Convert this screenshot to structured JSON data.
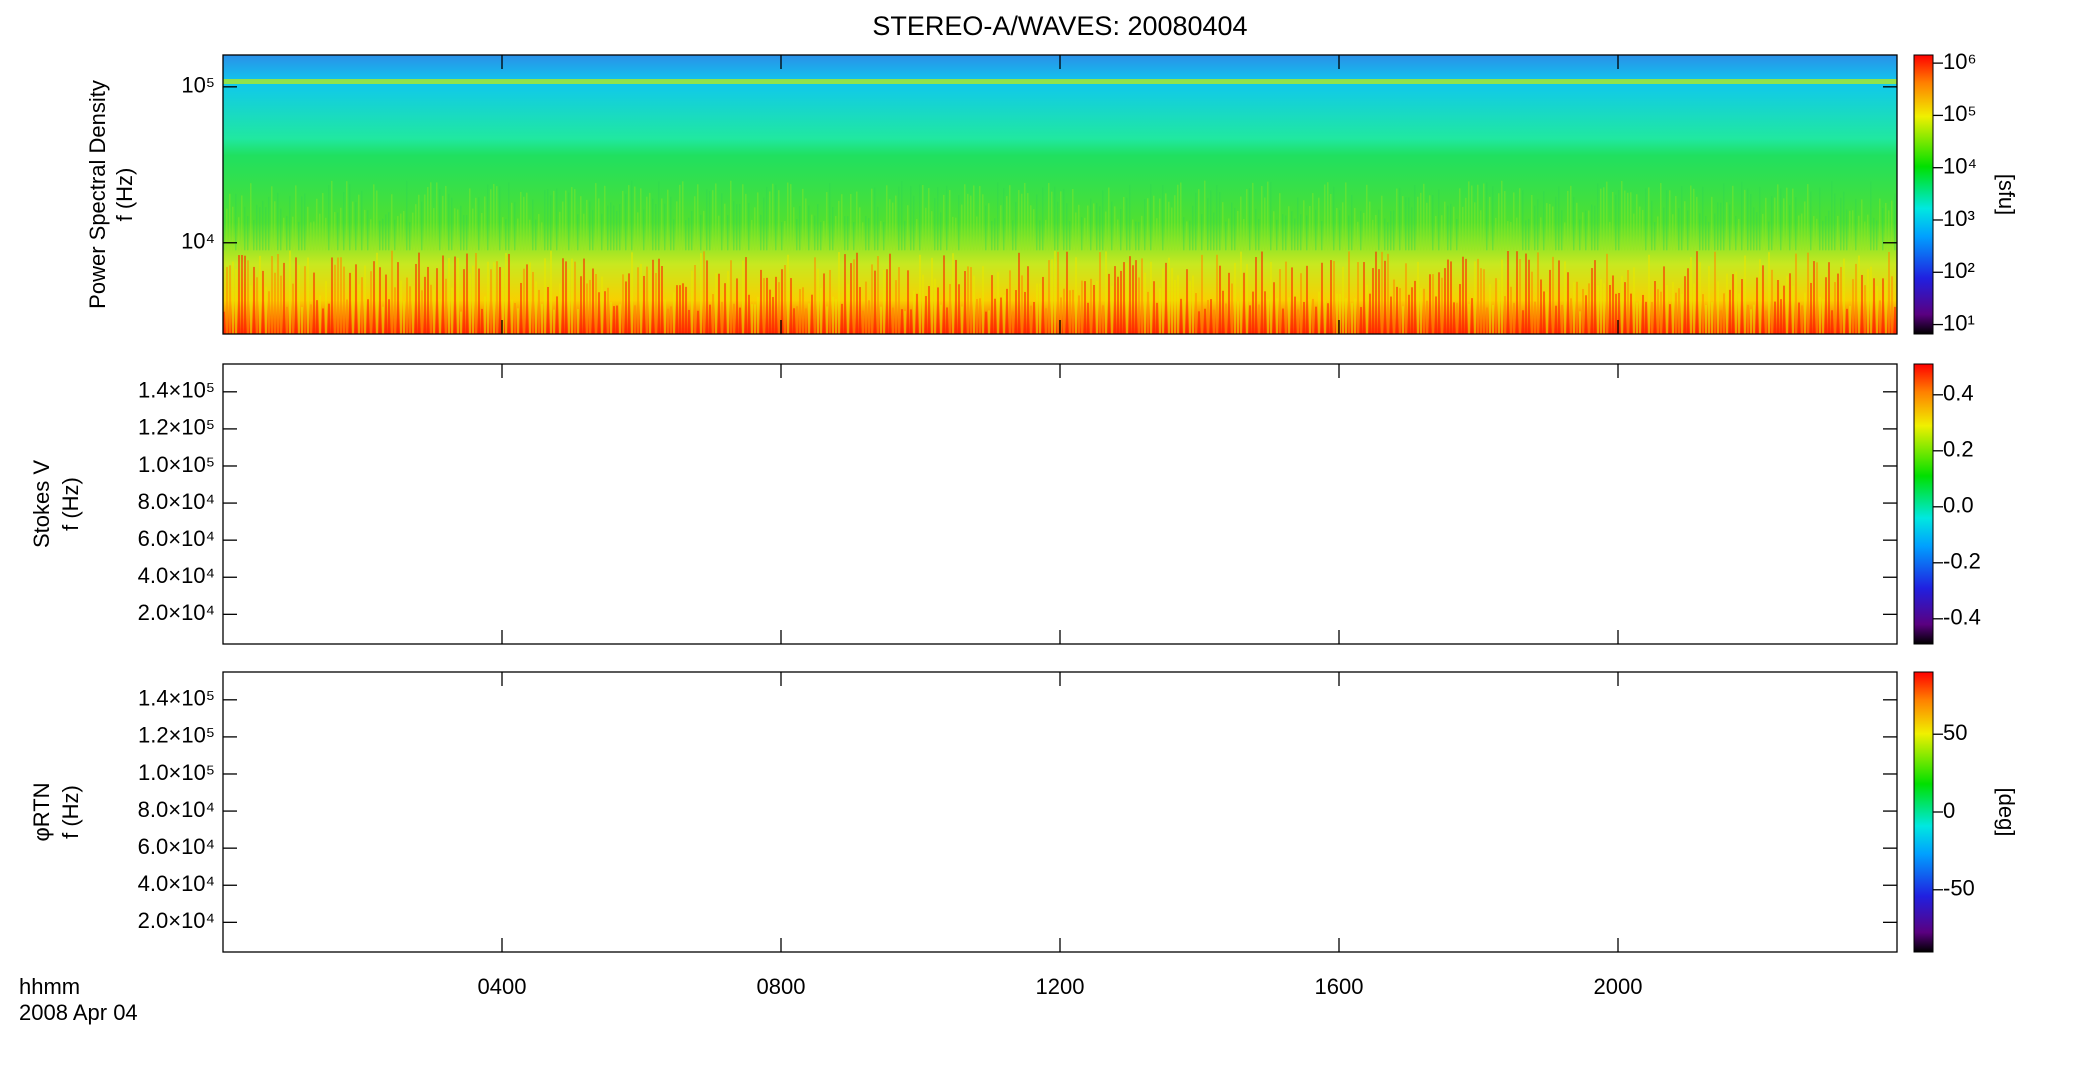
{
  "title": "STEREO-A/WAVES: 20080404",
  "x_axis": {
    "xlim": [
      0,
      24
    ],
    "xticks": [
      {
        "value": 4,
        "label": "0400"
      },
      {
        "value": 8,
        "label": "0800"
      },
      {
        "value": 12,
        "label": "1200"
      },
      {
        "value": 16,
        "label": "1600"
      },
      {
        "value": 20,
        "label": "2000"
      }
    ],
    "time_label": "hhmm",
    "date_label": "2008 Apr 04"
  },
  "chart_data": [
    {
      "type": "spectrogram",
      "has_data": true,
      "y_label": [
        "Power Spectral Density",
        "f (Hz)"
      ],
      "y_log": true,
      "ylim": [
        2600,
        160000
      ],
      "yticks": [
        {
          "value": 10000,
          "label": "10⁴"
        },
        {
          "value": 100000,
          "label": "10⁵"
        }
      ],
      "colorbar": {
        "log": true,
        "lim": [
          6.6,
          1430000
        ],
        "label": "[sfu]",
        "ticks": [
          {
            "value": 10,
            "label": "10¹"
          },
          {
            "value": 100,
            "label": "10²"
          },
          {
            "value": 1000,
            "label": "10³"
          },
          {
            "value": 10000,
            "label": "10⁴"
          },
          {
            "value": 100000,
            "label": "10⁵"
          },
          {
            "value": 1000000,
            "label": "10⁶"
          }
        ]
      }
    },
    {
      "type": "spectrogram",
      "has_data": false,
      "y_label": [
        "Stokes V",
        "f (Hz)"
      ],
      "y_log": false,
      "ylim": [
        4000,
        155000
      ],
      "yticks": [
        {
          "value": 20000,
          "label": "2.0×10⁴"
        },
        {
          "value": 40000,
          "label": "4.0×10⁴"
        },
        {
          "value": 60000,
          "label": "6.0×10⁴"
        },
        {
          "value": 80000,
          "label": "8.0×10⁴"
        },
        {
          "value": 100000,
          "label": "1.0×10⁵"
        },
        {
          "value": 120000,
          "label": "1.2×10⁵"
        },
        {
          "value": 140000,
          "label": "1.4×10⁵"
        }
      ],
      "colorbar": {
        "log": false,
        "lim": [
          -0.49,
          0.51
        ],
        "ticks": [
          -0.4,
          -0.2,
          {
            "value": 0,
            "label": "0.0"
          },
          0.2,
          0.4
        ]
      }
    },
    {
      "type": "spectrogram",
      "has_data": false,
      "y_label": [
        "φRTN",
        "f (Hz)"
      ],
      "y_log": false,
      "ylim": [
        4000,
        155000
      ],
      "yticks": [
        {
          "value": 20000,
          "label": "2.0×10⁴"
        },
        {
          "value": 40000,
          "label": "4.0×10⁴"
        },
        {
          "value": 60000,
          "label": "6.0×10⁴"
        },
        {
          "value": 80000,
          "label": "8.0×10⁴"
        },
        {
          "value": 100000,
          "label": "1.0×10⁵"
        },
        {
          "value": 120000,
          "label": "1.2×10⁵"
        },
        {
          "value": 140000,
          "label": "1.4×10⁵"
        }
      ],
      "colorbar": {
        "log": false,
        "lim": [
          -90,
          90
        ],
        "label": "[deg]",
        "ticks": [
          -50,
          0,
          50
        ]
      }
    }
  ]
}
